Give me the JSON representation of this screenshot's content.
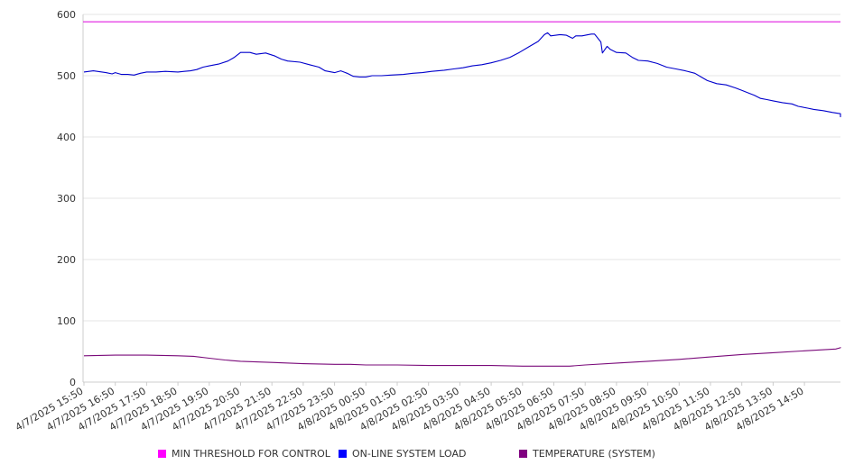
{
  "chart_data": {
    "type": "line",
    "ylim": [
      0,
      600
    ],
    "yticks": [
      0,
      100,
      200,
      300,
      400,
      500,
      600
    ],
    "grid": true,
    "legend_position": "bottom",
    "x_range_hours": [
      0,
      24
    ],
    "x_tick_labels": [
      "4/7/2025 15:50",
      "4/7/2025 16:50",
      "4/7/2025 17:50",
      "4/7/2025 18:50",
      "4/7/2025 19:50",
      "4/7/2025 20:50",
      "4/7/2025 21:50",
      "4/7/2025 22:50",
      "4/7/2025 23:50",
      "4/8/2025 00:50",
      "4/8/2025 01:50",
      "4/8/2025 02:50",
      "4/8/2025 03:50",
      "4/8/2025 04:50",
      "4/8/2025 05:50",
      "4/8/2025 06:50",
      "4/8/2025 07:50",
      "4/8/2025 08:50",
      "4/8/2025 09:50",
      "4/8/2025 10:50",
      "4/8/2025 11:50",
      "4/8/2025 12:50",
      "4/8/2025 13:50",
      "4/8/2025 14:50"
    ],
    "series": [
      {
        "name": "MIN THRESHOLD FOR CONTROL",
        "color": "#e11ce1",
        "legend_color": "#ff00ff",
        "points": [
          [
            0,
            588
          ],
          [
            24,
            588
          ]
        ]
      },
      {
        "name": "ON-LINE SYSTEM LOAD",
        "color": "#0000cc",
        "legend_color": "#0000ff",
        "points": [
          [
            0,
            506
          ],
          [
            0.3,
            508
          ],
          [
            0.7,
            505
          ],
          [
            0.9,
            503
          ],
          [
            1.0,
            505
          ],
          [
            1.2,
            502
          ],
          [
            1.4,
            502
          ],
          [
            1.6,
            501
          ],
          [
            1.8,
            504
          ],
          [
            2.0,
            506
          ],
          [
            2.3,
            506
          ],
          [
            2.6,
            507
          ],
          [
            3.0,
            506
          ],
          [
            3.2,
            507
          ],
          [
            3.4,
            508
          ],
          [
            3.6,
            510
          ],
          [
            3.8,
            514
          ],
          [
            4.0,
            516
          ],
          [
            4.3,
            519
          ],
          [
            4.6,
            524
          ],
          [
            4.8,
            530
          ],
          [
            4.9,
            534
          ],
          [
            5.0,
            538
          ],
          [
            5.3,
            538
          ],
          [
            5.5,
            535
          ],
          [
            5.8,
            537
          ],
          [
            6.1,
            532
          ],
          [
            6.3,
            527
          ],
          [
            6.5,
            524
          ],
          [
            6.9,
            522
          ],
          [
            7.2,
            518
          ],
          [
            7.5,
            514
          ],
          [
            7.7,
            508
          ],
          [
            8.0,
            505
          ],
          [
            8.2,
            508
          ],
          [
            8.4,
            504
          ],
          [
            8.6,
            499
          ],
          [
            8.8,
            498
          ],
          [
            9.0,
            498
          ],
          [
            9.2,
            500
          ],
          [
            9.5,
            500
          ],
          [
            9.8,
            501
          ],
          [
            10.2,
            502
          ],
          [
            10.5,
            504
          ],
          [
            10.8,
            505
          ],
          [
            11.1,
            507
          ],
          [
            11.5,
            509
          ],
          [
            11.8,
            511
          ],
          [
            12.1,
            513
          ],
          [
            12.4,
            516
          ],
          [
            12.7,
            518
          ],
          [
            13.0,
            521
          ],
          [
            13.3,
            525
          ],
          [
            13.6,
            530
          ],
          [
            13.9,
            538
          ],
          [
            14.2,
            547
          ],
          [
            14.5,
            556
          ],
          [
            14.7,
            567
          ],
          [
            14.8,
            570
          ],
          [
            14.9,
            565
          ],
          [
            15.2,
            567
          ],
          [
            15.4,
            566
          ],
          [
            15.6,
            561
          ],
          [
            15.7,
            565
          ],
          [
            15.9,
            565
          ],
          [
            16.1,
            567
          ],
          [
            16.2,
            568
          ],
          [
            16.3,
            568
          ],
          [
            16.5,
            555
          ],
          [
            16.55,
            537
          ],
          [
            16.7,
            548
          ],
          [
            16.8,
            543
          ],
          [
            17.0,
            538
          ],
          [
            17.3,
            537
          ],
          [
            17.5,
            530
          ],
          [
            17.7,
            525
          ],
          [
            18.0,
            524
          ],
          [
            18.3,
            520
          ],
          [
            18.6,
            514
          ],
          [
            18.9,
            511
          ],
          [
            19.2,
            508
          ],
          [
            19.5,
            504
          ],
          [
            19.7,
            498
          ],
          [
            19.9,
            492
          ],
          [
            20.2,
            487
          ],
          [
            20.5,
            485
          ],
          [
            20.8,
            480
          ],
          [
            21.0,
            476
          ],
          [
            21.2,
            472
          ],
          [
            21.4,
            468
          ],
          [
            21.6,
            463
          ],
          [
            21.8,
            461
          ],
          [
            22.0,
            459
          ],
          [
            22.3,
            456
          ],
          [
            22.6,
            454
          ],
          [
            22.8,
            450
          ],
          [
            23.1,
            447
          ],
          [
            23.3,
            445
          ],
          [
            23.6,
            443
          ],
          [
            23.9,
            440
          ],
          [
            24.2,
            438
          ],
          [
            24.5,
            436
          ],
          [
            24.7,
            435
          ],
          [
            24.9,
            434
          ],
          [
            25.1,
            433
          ],
          [
            25.3,
            434
          ],
          [
            25.4,
            435
          ]
        ]
      },
      {
        "name": "TEMPERATURE (SYSTEM)",
        "color": "#7a0a7a",
        "legend_color": "#800080",
        "points": [
          [
            0,
            43
          ],
          [
            1,
            44
          ],
          [
            2,
            44
          ],
          [
            3,
            43
          ],
          [
            3.5,
            42
          ],
          [
            4,
            39
          ],
          [
            4.5,
            36
          ],
          [
            5,
            34
          ],
          [
            6,
            32
          ],
          [
            7,
            30
          ],
          [
            8,
            29
          ],
          [
            8.5,
            29
          ],
          [
            9,
            28
          ],
          [
            10,
            28
          ],
          [
            11,
            27
          ],
          [
            12,
            27
          ],
          [
            13,
            27
          ],
          [
            14,
            26
          ],
          [
            15,
            26
          ],
          [
            15.5,
            26
          ],
          [
            16,
            28
          ],
          [
            17,
            31
          ],
          [
            18,
            34
          ],
          [
            19,
            37
          ],
          [
            20,
            41
          ],
          [
            21,
            45
          ],
          [
            22,
            48
          ],
          [
            23,
            51
          ],
          [
            24,
            54
          ],
          [
            24.5,
            56
          ],
          [
            25.4,
            57
          ]
        ]
      }
    ]
  }
}
